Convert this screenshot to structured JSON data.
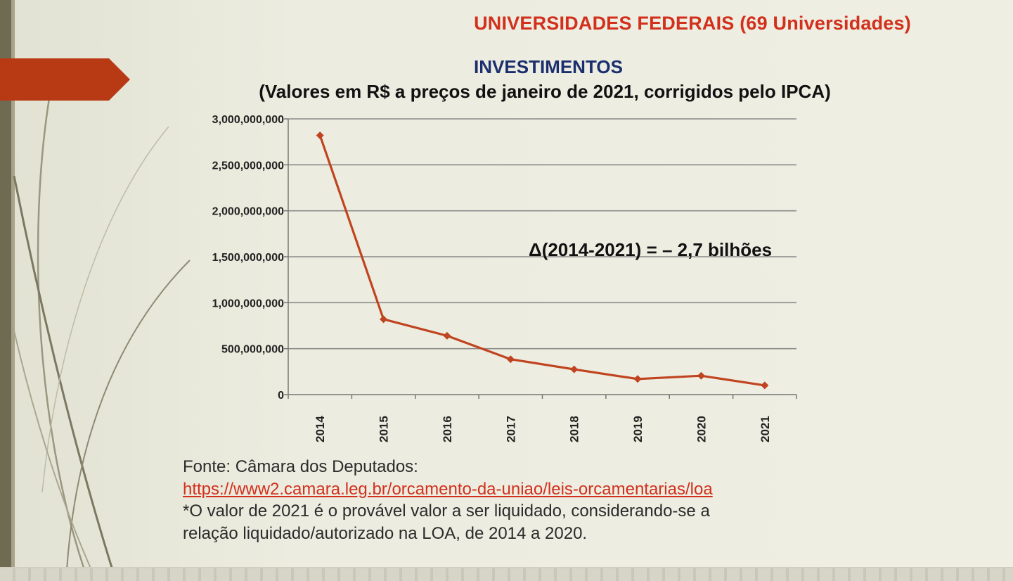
{
  "header": {
    "title": "UNIVERSIDADES FEDERAIS (69 Universidades)"
  },
  "colors": {
    "title_red": "#d2301c",
    "title_blue": "#1b2f6e",
    "series_line": "#c0441f",
    "banner": "#b83a15",
    "grid": "#8a8a8a"
  },
  "chart_data": {
    "type": "line",
    "title": "INVESTIMENTOS",
    "subtitle": "(Valores em R$ a preços de janeiro de 2021, corrigidos pelo IPCA)",
    "x": [
      "2014",
      "2015",
      "2016",
      "2017",
      "2018",
      "2019",
      "2020",
      "2021"
    ],
    "series": [
      {
        "values": [
          2820000000,
          820000000,
          640000000,
          385000000,
          275000000,
          170000000,
          205000000,
          100000000
        ]
      }
    ],
    "ylim": [
      0,
      3000000000
    ],
    "yticks": [
      0,
      500000000,
      1000000000,
      1500000000,
      2000000000,
      2500000000,
      3000000000
    ],
    "ytick_labels": [
      "0",
      "500,000,000",
      "1,000,000,000",
      "1,500,000,000",
      "2,000,000,000",
      "2,500,000,000",
      "3,000,000,000"
    ],
    "grid": true,
    "legend": false,
    "annotation": "Δ(2014-2021) = – 2,7 bilhões"
  },
  "source": {
    "label": "Fonte: Câmara dos Deputados:",
    "link": "https://www2.camara.leg.br/orcamento-da-uniao/leis-orcamentarias/loa",
    "note_line1": "*O valor de 2021 é o provável valor a ser liquidado, considerando-se a",
    "note_line2": "relação liquidado/autorizado na LOA, de 2014 a 2020."
  }
}
